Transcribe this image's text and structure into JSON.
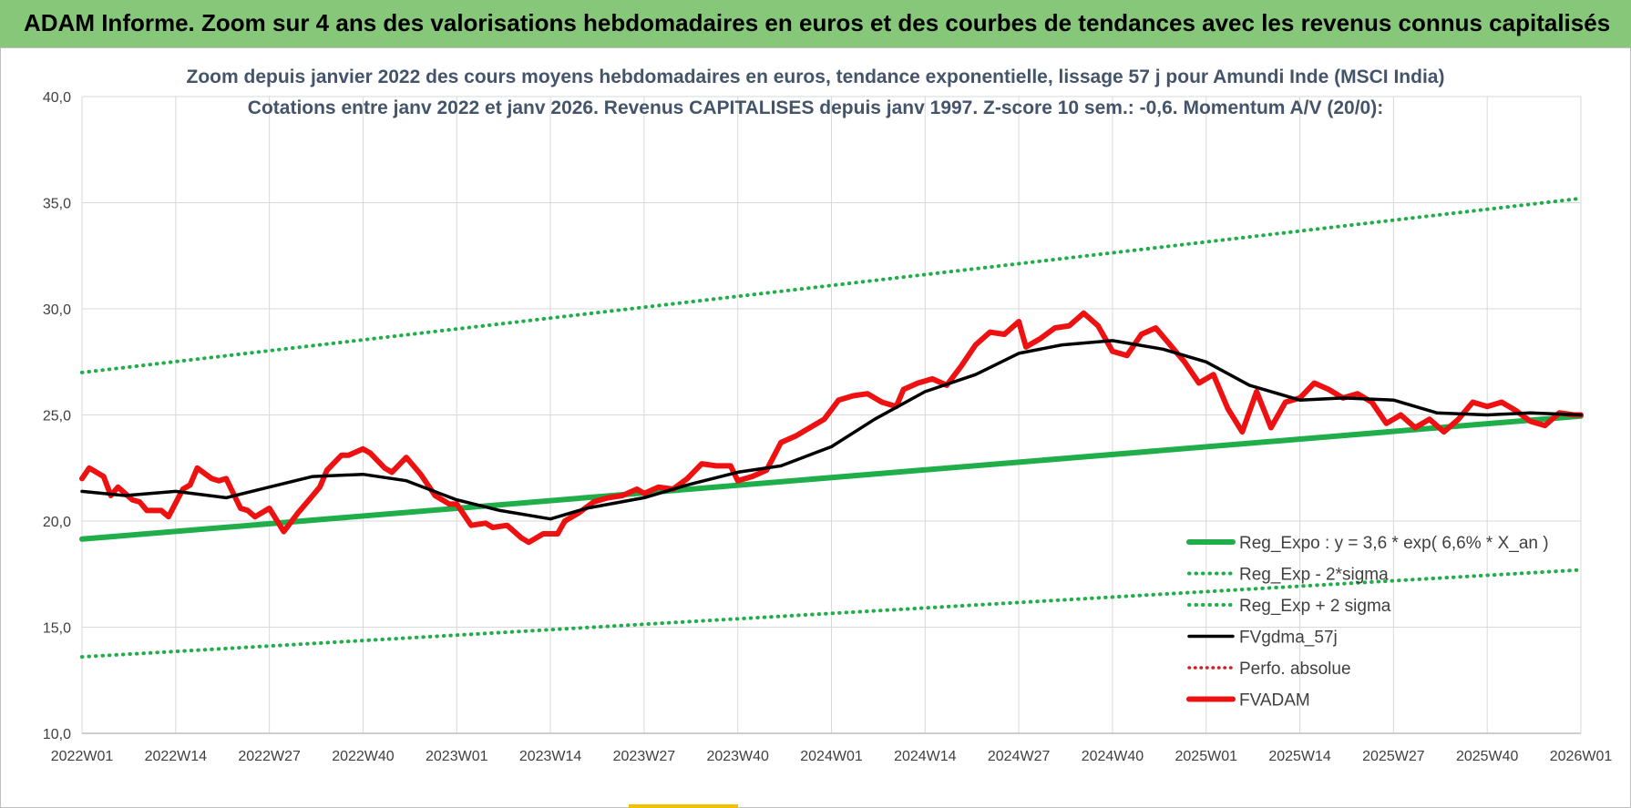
{
  "header": {
    "title": "ADAM Informe. Zoom sur 4 ans des valorisations hebdomadaires en euros et des courbes de tendances avec les revenus connus capitalisés"
  },
  "chart": {
    "subtitle_line1": "Zoom depuis janvier 2022 des cours moyens hebdomadaires en euros, tendance exponentielle, lissage 57 j pour Amundi Inde (MSCI India)",
    "subtitle_line2": "Cotations entre janv 2022 et janv 2026. Revenus CAPITALISES depuis janv 1997. Z-score 10 sem.: -0,6. Momentum A/V (20/0):"
  },
  "colors": {
    "banner": "#86c77a",
    "regression": "#1fae4a",
    "band": "#1fae4a",
    "smooth": "#000000",
    "price": "#ee1111",
    "perf": "#cc2222",
    "grid": "#d9d9d9",
    "axis_text": "#404040",
    "title_text": "#44546a"
  },
  "chart_data": {
    "type": "line",
    "title": "Zoom depuis janvier 2022 des cours moyens hebdomadaires en euros, tendance exponentielle, lissage 57 j pour Amundi Inde (MSCI India)",
    "xlabel": "",
    "ylabel": "",
    "ylim": [
      10,
      40
    ],
    "yticks": [
      "10,0",
      "15,0",
      "20,0",
      "25,0",
      "30,0",
      "35,0",
      "40,0"
    ],
    "xticks": [
      "2022W01",
      "2022W14",
      "2022W27",
      "2022W40",
      "2023W01",
      "2023W14",
      "2023W27",
      "2023W40",
      "2024W01",
      "2024W14",
      "2024W27",
      "2024W40",
      "2025W01",
      "2025W14",
      "2025W27",
      "2025W40",
      "2026W01"
    ],
    "grid": true,
    "legend_position": "bottom-right",
    "series": [
      {
        "name": "Reg_Expo : y = 3,6 * exp( 6,6% *  X_an )",
        "style": "solid-thick",
        "x": [
          0,
          208
        ],
        "values": [
          19.15,
          24.95
        ]
      },
      {
        "name": "Reg_Exp - 2*sigma",
        "style": "dotted",
        "x": [
          0,
          208
        ],
        "values": [
          13.6,
          17.7
        ]
      },
      {
        "name": "Reg_Exp + 2 sigma",
        "style": "dotted",
        "x": [
          0,
          208
        ],
        "values": [
          27.0,
          35.2
        ]
      },
      {
        "name": "FVgdma_57j",
        "style": "solid",
        "x": [
          0,
          6,
          13,
          20,
          26,
          32,
          39,
          45,
          52,
          58,
          65,
          70,
          78,
          84,
          91,
          97,
          104,
          110,
          117,
          124,
          130,
          136,
          143,
          150,
          156,
          162,
          169,
          175,
          182,
          188,
          195,
          201,
          208
        ],
        "values": [
          21.4,
          21.2,
          21.4,
          21.1,
          21.6,
          22.1,
          22.2,
          21.9,
          21.0,
          20.5,
          20.1,
          20.6,
          21.1,
          21.7,
          22.3,
          22.6,
          23.5,
          24.8,
          26.1,
          26.9,
          27.9,
          28.3,
          28.5,
          28.1,
          27.5,
          26.4,
          25.7,
          25.8,
          25.7,
          25.1,
          25.0,
          25.1,
          25.0
        ]
      },
      {
        "name": "Perfo. absolue",
        "style": "dotted",
        "x": [],
        "values": []
      },
      {
        "name": "FVADAM",
        "style": "solid-thick",
        "x": [
          0,
          1,
          3,
          4,
          5,
          7,
          8,
          9,
          11,
          12,
          14,
          15,
          16,
          18,
          19,
          20,
          22,
          23,
          24,
          26,
          28,
          30,
          31,
          33,
          34,
          36,
          37,
          39,
          40,
          42,
          43,
          45,
          47,
          49,
          51,
          52,
          54,
          56,
          57,
          59,
          61,
          62,
          64,
          66,
          67,
          69,
          71,
          73,
          75,
          77,
          78,
          80,
          82,
          84,
          86,
          88,
          90,
          91,
          93,
          95,
          97,
          99,
          101,
          103,
          105,
          107,
          109,
          111,
          113,
          114,
          116,
          118,
          120,
          122,
          124,
          126,
          128,
          130,
          131,
          133,
          135,
          137,
          139,
          141,
          143,
          145,
          147,
          149,
          151,
          153,
          155,
          157,
          159,
          161,
          163,
          165,
          167,
          169,
          171,
          173,
          175,
          177,
          179,
          181,
          183,
          185,
          187,
          189,
          191,
          193,
          195,
          197,
          199,
          201,
          203,
          205,
          207,
          208
        ],
        "values": [
          22.0,
          22.5,
          22.1,
          21.2,
          21.6,
          21.0,
          20.9,
          20.5,
          20.5,
          20.2,
          21.5,
          21.7,
          22.5,
          22.0,
          21.9,
          22.0,
          20.6,
          20.5,
          20.2,
          20.6,
          19.5,
          20.4,
          20.8,
          21.6,
          22.4,
          23.1,
          23.1,
          23.4,
          23.2,
          22.5,
          22.3,
          23.0,
          22.2,
          21.2,
          20.8,
          20.8,
          19.8,
          19.9,
          19.7,
          19.8,
          19.2,
          19.0,
          19.4,
          19.4,
          20.0,
          20.4,
          20.9,
          21.1,
          21.2,
          21.5,
          21.3,
          21.6,
          21.5,
          22.0,
          22.7,
          22.6,
          22.6,
          21.9,
          22.1,
          22.4,
          23.7,
          24.0,
          24.4,
          24.8,
          25.7,
          25.9,
          26.0,
          25.6,
          25.4,
          26.2,
          26.5,
          26.7,
          26.4,
          27.3,
          28.3,
          28.9,
          28.8,
          29.4,
          28.2,
          28.6,
          29.1,
          29.2,
          29.8,
          29.2,
          28.0,
          27.8,
          28.8,
          29.1,
          28.3,
          27.5,
          26.5,
          26.9,
          25.3,
          24.2,
          26.1,
          24.4,
          25.6,
          25.8,
          26.5,
          26.2,
          25.8,
          26.0,
          25.6,
          24.6,
          25.0,
          24.4,
          24.8,
          24.2,
          24.8,
          25.6,
          25.4,
          25.6,
          25.2,
          24.7,
          24.5,
          25.1,
          25.0,
          25.0
        ]
      }
    ]
  }
}
